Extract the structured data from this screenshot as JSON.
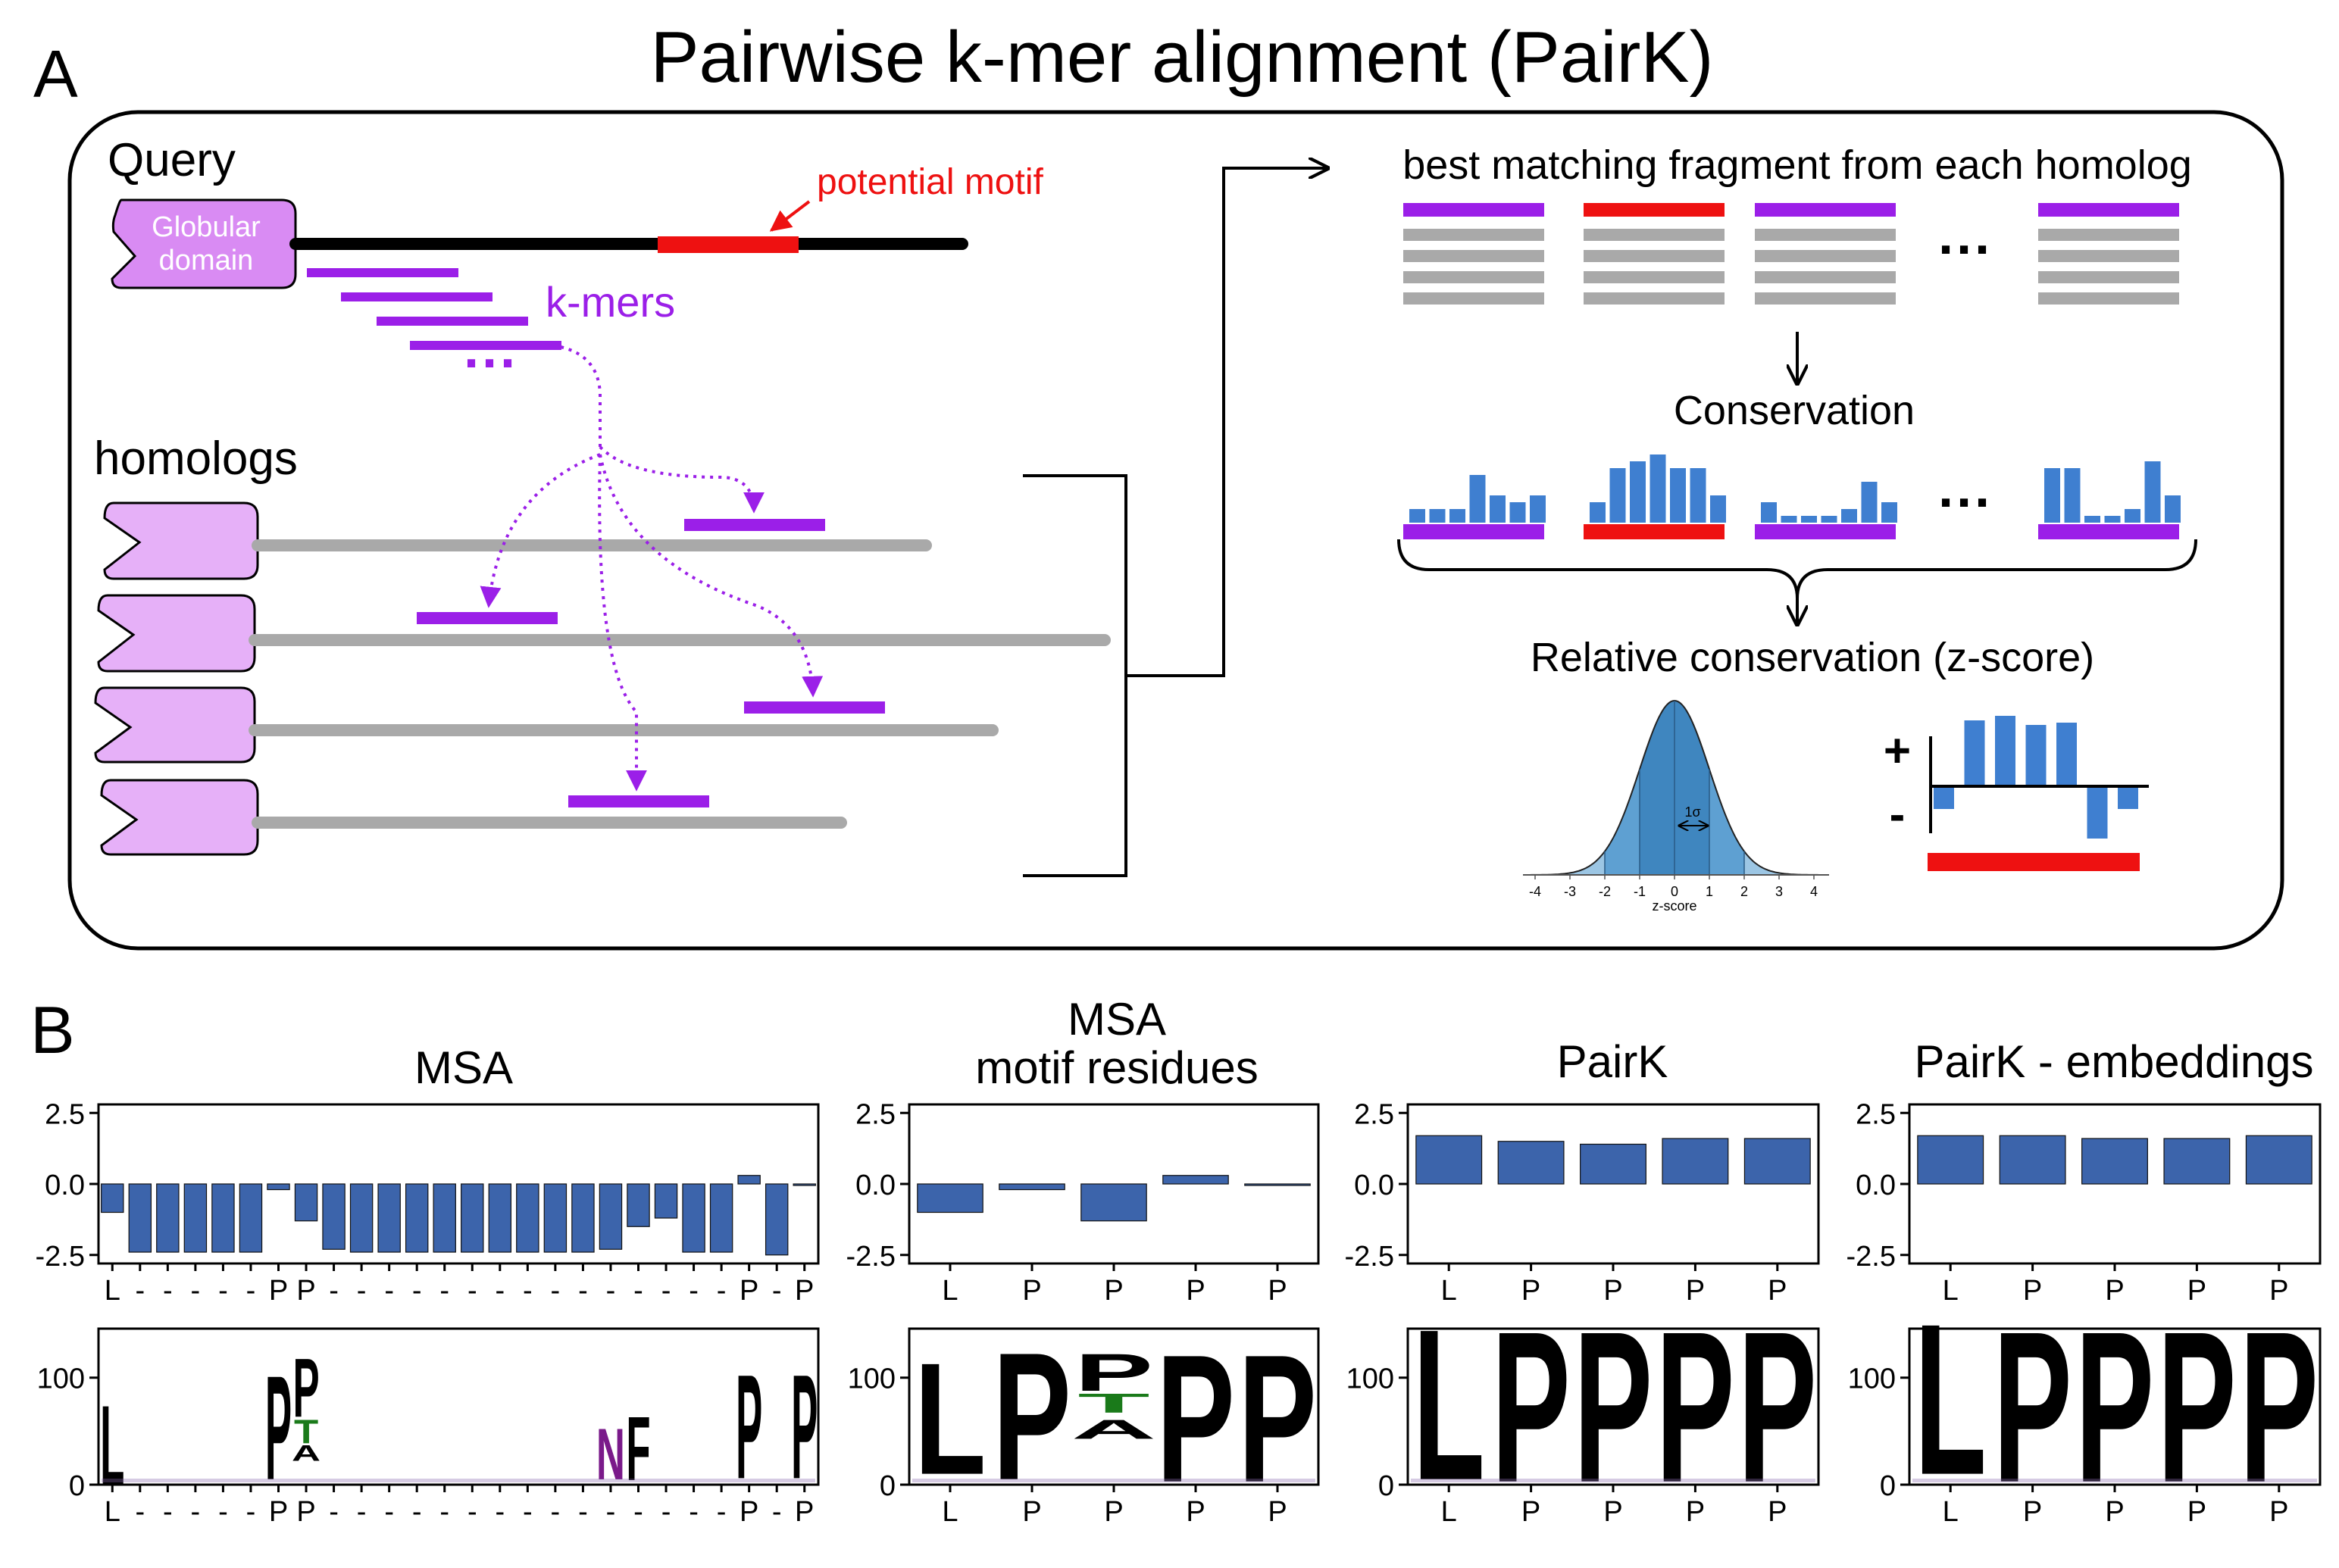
{
  "panel_a": {
    "label": "A",
    "title": "Pairwise k-mer alignment (PairK)",
    "query_label": "Query",
    "globular_domain": [
      "Globular",
      "domain"
    ],
    "potential_motif": "potential motif",
    "kmers_label": "k-mers",
    "ellipsis": "···",
    "homologs_label": "homologs",
    "best_fragment": "best matching fragment from each homolog",
    "conservation": "Conservation",
    "relative_conservation": "Relative conservation (z-score)",
    "bell": {
      "ticks": [
        "-4",
        "-3",
        "-2",
        "-1",
        "0",
        "1",
        "2",
        "3",
        "4"
      ],
      "xlabel": "z-score",
      "sigma": "1σ"
    },
    "plus": "+",
    "minus": "-"
  },
  "colors": {
    "purple": "#9B1FE8",
    "red": "#EE1111",
    "gray": "#A9A9A9",
    "domain_query": "#D98BF3",
    "domain_homolog": "#E6B0F8",
    "bar_blue": "#3F7FD0",
    "logo_bar": "#3C64AB"
  },
  "panel_b": {
    "label": "B",
    "sublabels": [
      [
        "MSA"
      ],
      [
        "MSA",
        "motif residues"
      ],
      [
        "PairK"
      ],
      [
        "PairK - embeddings"
      ]
    ],
    "msa_xticks": [
      "L",
      "-",
      "-",
      "-",
      "-",
      "-",
      "P",
      "P",
      "-",
      "-",
      "-",
      "-",
      "-",
      "-",
      "-",
      "-",
      "-",
      "-",
      "-",
      "-",
      "-",
      "-",
      "-",
      "P",
      "-",
      "P"
    ],
    "motif_xticks": [
      "L",
      "P",
      "P",
      "P",
      "P"
    ],
    "yticks_z": [
      "2.5",
      "0.0",
      "-2.5"
    ],
    "yticks_logo": [
      "100",
      "0"
    ],
    "logo_letters": {
      "msa": [
        "L",
        "P",
        "P",
        "T",
        "A",
        "N",
        "F",
        "P",
        "P"
      ],
      "motif": [
        "L",
        "P",
        "P",
        "T",
        "A",
        "P",
        "P"
      ],
      "pairk": [
        "L",
        "P",
        "P",
        "P",
        "P"
      ],
      "embed": [
        "L",
        "P",
        "P",
        "P",
        "P"
      ]
    }
  },
  "chart_data": [
    {
      "type": "bar",
      "title": "MSA",
      "categories": [
        "L",
        "-",
        "-",
        "-",
        "-",
        "-",
        "P",
        "P",
        "-",
        "-",
        "-",
        "-",
        "-",
        "-",
        "-",
        "-",
        "-",
        "-",
        "-",
        "-",
        "-",
        "-",
        "-",
        "P",
        "-",
        "P"
      ],
      "values": [
        -1.0,
        -2.4,
        -2.4,
        -2.4,
        -2.4,
        -2.4,
        -0.2,
        -1.3,
        -2.3,
        -2.4,
        -2.4,
        -2.4,
        -2.4,
        -2.4,
        -2.4,
        -2.4,
        -2.4,
        -2.4,
        -2.3,
        -1.5,
        -1.2,
        -2.4,
        -2.4,
        0.3,
        -2.5,
        0.0
      ],
      "ylim": [
        -2.8,
        2.8
      ]
    },
    {
      "type": "bar",
      "title": "MSA motif residues",
      "categories": [
        "L",
        "P",
        "P",
        "P",
        "P"
      ],
      "values": [
        -1.0,
        -0.2,
        -1.3,
        0.3,
        0.0
      ],
      "ylim": [
        -2.8,
        2.8
      ]
    },
    {
      "type": "bar",
      "title": "PairK",
      "categories": [
        "L",
        "P",
        "P",
        "P",
        "P"
      ],
      "values": [
        1.7,
        1.5,
        1.4,
        1.6,
        1.6
      ],
      "ylim": [
        -2.8,
        2.8
      ]
    },
    {
      "type": "bar",
      "title": "PairK - embeddings",
      "categories": [
        "L",
        "P",
        "P",
        "P",
        "P"
      ],
      "values": [
        1.7,
        1.7,
        1.6,
        1.6,
        1.7
      ],
      "ylim": [
        -2.8,
        2.8
      ]
    }
  ],
  "schematic_bars": {
    "fragment_conservation": [
      [
        2,
        2,
        2,
        7,
        4,
        3,
        4
      ],
      [
        3,
        8,
        9,
        10,
        8,
        8,
        4
      ],
      [
        3,
        1,
        1,
        1,
        2,
        6,
        3
      ],
      [
        8,
        8,
        1,
        1,
        2,
        9,
        4
      ]
    ],
    "zscore_bars": [
      -1.0,
      2.9,
      3.1,
      2.7,
      2.8,
      -2.3,
      -1.0
    ]
  }
}
